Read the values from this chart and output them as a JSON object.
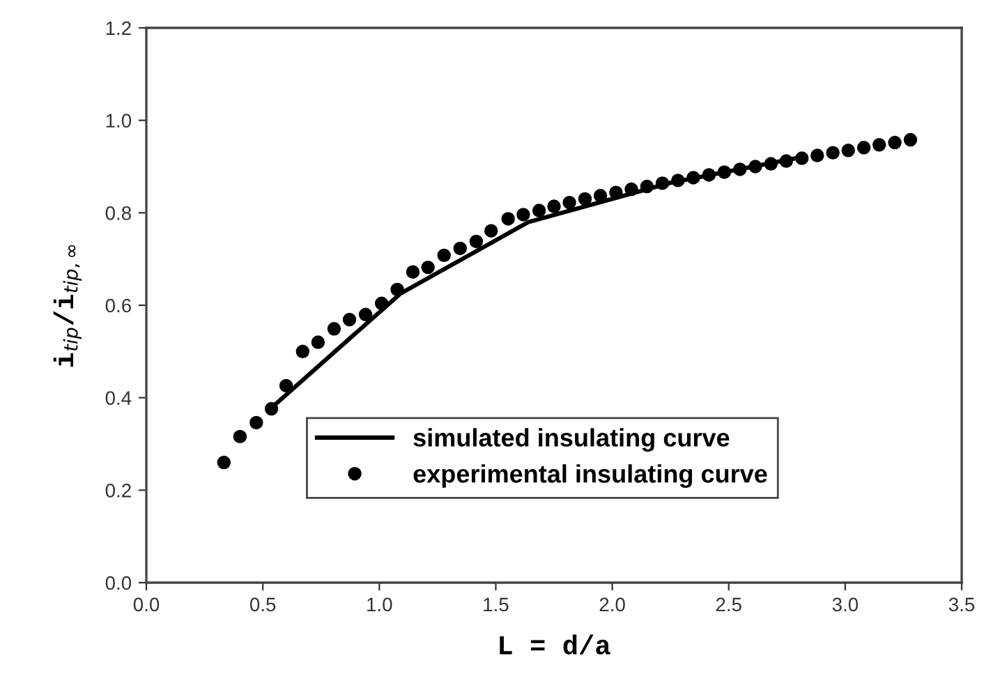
{
  "chart_data": {
    "type": "scatter",
    "xlabel": "L = d/a",
    "ylabel": "i$_{tip}$/i$_{tip,∞}$",
    "xlim": [
      0.0,
      3.5
    ],
    "xticks": [
      {
        "value": 0.0,
        "label": "0.0"
      },
      0.5,
      {
        "value": 1.0,
        "label": "1.0"
      },
      1.5,
      {
        "value": 2.0,
        "label": "2.0"
      },
      2.5,
      {
        "value": 3.0,
        "label": "3.0"
      },
      3.5
    ],
    "ylim": [
      0.0,
      1.2
    ],
    "yticks": [
      {
        "value": 0.0,
        "label": "0.0"
      },
      0.2,
      0.4,
      0.6,
      0.8,
      {
        "value": 1.0,
        "label": "1.0"
      },
      1.2
    ],
    "grid": false,
    "legend": "bottom right",
    "series": [
      {
        "name": "simulated insulating curve",
        "type": "line",
        "color": "#000000",
        "marker": "none",
        "line_style": "solid",
        "x": [
          0.53,
          1.09,
          1.64,
          2.25,
          2.83
        ],
        "values": [
          0.375,
          0.625,
          0.78,
          0.865,
          0.922
        ]
      },
      {
        "name": "experimental insulating curve",
        "color": "#000000",
        "marker": "circle",
        "x": [
          0.333,
          0.402,
          0.472,
          0.537,
          0.6,
          0.671,
          0.737,
          0.806,
          0.872,
          0.941,
          1.01,
          1.077,
          1.144,
          1.209,
          1.278,
          1.347,
          1.416,
          1.48,
          1.553,
          1.618,
          1.686,
          1.75,
          1.816,
          1.883,
          1.949,
          2.016,
          2.082,
          2.149,
          2.215,
          2.282,
          2.348,
          2.415,
          2.481,
          2.548,
          2.614,
          2.681,
          2.747,
          2.814,
          2.88,
          2.947,
          3.013,
          3.08,
          3.146,
          3.213,
          3.28
        ],
        "values": [
          0.26,
          0.316,
          0.346,
          0.376,
          0.426,
          0.5,
          0.52,
          0.549,
          0.569,
          0.58,
          0.604,
          0.634,
          0.672,
          0.682,
          0.708,
          0.723,
          0.738,
          0.761,
          0.787,
          0.796,
          0.805,
          0.814,
          0.822,
          0.83,
          0.837,
          0.844,
          0.851,
          0.857,
          0.864,
          0.87,
          0.876,
          0.882,
          0.888,
          0.894,
          0.9,
          0.906,
          0.912,
          0.918,
          0.924,
          0.93,
          0.935,
          0.941,
          0.947,
          0.952,
          0.958
        ]
      }
    ]
  }
}
